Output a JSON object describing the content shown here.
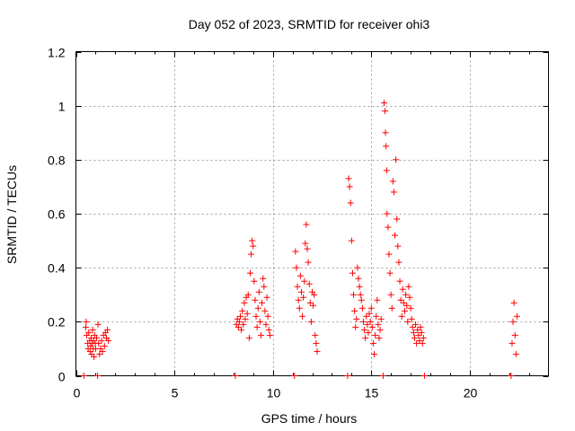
{
  "chart_data": {
    "type": "scatter",
    "title": "Day 052 of 2023, SRMTID for receiver ohi3",
    "xlabel": "GPS time / hours",
    "ylabel": "SRMTID / TECUs",
    "xlim": [
      0,
      24
    ],
    "ylim": [
      0,
      1.2
    ],
    "xticks": [
      0,
      5,
      10,
      15,
      20
    ],
    "xtick_labels": [
      "0",
      "5",
      "10",
      "15",
      "20"
    ],
    "yticks": [
      0,
      0.2,
      0.4,
      0.6,
      0.8,
      1.0,
      1.2
    ],
    "ytick_labels": [
      "0",
      "0.2",
      "0.4",
      "0.6",
      "0.8",
      "1",
      "1.2"
    ],
    "grid": true,
    "marker": "+",
    "color": "#ff0000",
    "series": [
      {
        "name": "SRMTID",
        "points": [
          [
            0.4,
            0.0
          ],
          [
            0.5,
            0.18
          ],
          [
            0.52,
            0.2
          ],
          [
            0.55,
            0.15
          ],
          [
            0.6,
            0.12
          ],
          [
            0.62,
            0.1
          ],
          [
            0.65,
            0.16
          ],
          [
            0.7,
            0.13
          ],
          [
            0.72,
            0.09
          ],
          [
            0.75,
            0.11
          ],
          [
            0.78,
            0.14
          ],
          [
            0.8,
            0.08
          ],
          [
            0.82,
            0.12
          ],
          [
            0.85,
            0.17
          ],
          [
            0.88,
            0.1
          ],
          [
            0.9,
            0.13
          ],
          [
            0.92,
            0.07
          ],
          [
            0.95,
            0.15
          ],
          [
            0.98,
            0.12
          ],
          [
            1.0,
            0.1
          ],
          [
            1.05,
            0.14
          ],
          [
            1.1,
            0.0
          ],
          [
            1.12,
            0.19
          ],
          [
            1.15,
            0.12
          ],
          [
            1.2,
            0.08
          ],
          [
            1.25,
            0.1
          ],
          [
            1.3,
            0.13
          ],
          [
            1.35,
            0.09
          ],
          [
            1.4,
            0.15
          ],
          [
            1.45,
            0.11
          ],
          [
            1.5,
            0.16
          ],
          [
            1.55,
            0.14
          ],
          [
            1.6,
            0.17
          ],
          [
            1.65,
            0.13
          ],
          [
            8.1,
            0.0
          ],
          [
            8.15,
            0.19
          ],
          [
            8.2,
            0.21
          ],
          [
            8.25,
            0.18
          ],
          [
            8.3,
            0.2
          ],
          [
            8.35,
            0.22
          ],
          [
            8.4,
            0.17
          ],
          [
            8.45,
            0.24
          ],
          [
            8.5,
            0.19
          ],
          [
            8.55,
            0.27
          ],
          [
            8.6,
            0.21
          ],
          [
            8.65,
            0.29
          ],
          [
            8.7,
            0.23
          ],
          [
            8.75,
            0.3
          ],
          [
            8.8,
            0.14
          ],
          [
            8.85,
            0.38
          ],
          [
            8.9,
            0.45
          ],
          [
            8.95,
            0.5
          ],
          [
            9.0,
            0.48
          ],
          [
            9.05,
            0.35
          ],
          [
            9.1,
            0.28
          ],
          [
            9.15,
            0.22
          ],
          [
            9.2,
            0.18
          ],
          [
            9.25,
            0.25
          ],
          [
            9.3,
            0.31
          ],
          [
            9.35,
            0.2
          ],
          [
            9.4,
            0.15
          ],
          [
            9.45,
            0.27
          ],
          [
            9.5,
            0.36
          ],
          [
            9.55,
            0.33
          ],
          [
            9.6,
            0.24
          ],
          [
            9.65,
            0.19
          ],
          [
            9.7,
            0.29
          ],
          [
            9.75,
            0.22
          ],
          [
            9.8,
            0.17
          ],
          [
            9.85,
            0.15
          ],
          [
            11.1,
            0.0
          ],
          [
            11.15,
            0.46
          ],
          [
            11.2,
            0.4
          ],
          [
            11.25,
            0.33
          ],
          [
            11.3,
            0.28
          ],
          [
            11.35,
            0.25
          ],
          [
            11.4,
            0.37
          ],
          [
            11.45,
            0.31
          ],
          [
            11.5,
            0.22
          ],
          [
            11.55,
            0.29
          ],
          [
            11.6,
            0.35
          ],
          [
            11.65,
            0.49
          ],
          [
            11.7,
            0.56
          ],
          [
            11.75,
            0.47
          ],
          [
            11.8,
            0.42
          ],
          [
            11.85,
            0.34
          ],
          [
            11.9,
            0.27
          ],
          [
            11.95,
            0.2
          ],
          [
            12.0,
            0.31
          ],
          [
            12.05,
            0.26
          ],
          [
            12.1,
            0.3
          ],
          [
            12.15,
            0.15
          ],
          [
            12.2,
            0.12
          ],
          [
            12.25,
            0.09
          ],
          [
            13.8,
            0.0
          ],
          [
            13.85,
            0.73
          ],
          [
            13.9,
            0.7
          ],
          [
            13.95,
            0.64
          ],
          [
            14.0,
            0.5
          ],
          [
            14.05,
            0.38
          ],
          [
            14.1,
            0.3
          ],
          [
            14.15,
            0.24
          ],
          [
            14.2,
            0.18
          ],
          [
            14.25,
            0.21
          ],
          [
            14.3,
            0.4
          ],
          [
            14.35,
            0.36
          ],
          [
            14.4,
            0.33
          ],
          [
            14.45,
            0.3
          ],
          [
            14.5,
            0.28
          ],
          [
            14.55,
            0.25
          ],
          [
            14.6,
            0.2
          ],
          [
            14.65,
            0.17
          ],
          [
            14.7,
            0.14
          ],
          [
            14.75,
            0.22
          ],
          [
            14.8,
            0.19
          ],
          [
            14.85,
            0.16
          ],
          [
            14.9,
            0.23
          ],
          [
            14.95,
            0.2
          ],
          [
            15.0,
            0.25
          ],
          [
            15.05,
            0.18
          ],
          [
            15.1,
            0.12
          ],
          [
            15.15,
            0.08
          ],
          [
            15.2,
            0.15
          ],
          [
            15.25,
            0.22
          ],
          [
            15.3,
            0.28
          ],
          [
            15.35,
            0.19
          ],
          [
            15.4,
            0.14
          ],
          [
            15.45,
            0.17
          ],
          [
            15.5,
            0.21
          ],
          [
            15.6,
            0.0
          ],
          [
            15.65,
            1.01
          ],
          [
            15.7,
            0.98
          ],
          [
            15.72,
            0.9
          ],
          [
            15.75,
            0.85
          ],
          [
            15.78,
            0.76
          ],
          [
            15.8,
            0.6
          ],
          [
            15.85,
            0.55
          ],
          [
            15.9,
            0.45
          ],
          [
            15.95,
            0.38
          ],
          [
            16.0,
            0.3
          ],
          [
            16.05,
            0.25
          ],
          [
            16.1,
            0.72
          ],
          [
            16.15,
            0.68
          ],
          [
            16.2,
            0.52
          ],
          [
            16.25,
            0.8
          ],
          [
            16.3,
            0.58
          ],
          [
            16.35,
            0.48
          ],
          [
            16.4,
            0.42
          ],
          [
            16.45,
            0.35
          ],
          [
            16.5,
            0.28
          ],
          [
            16.55,
            0.22
          ],
          [
            16.6,
            0.32
          ],
          [
            16.65,
            0.27
          ],
          [
            16.7,
            0.24
          ],
          [
            16.75,
            0.3
          ],
          [
            16.8,
            0.26
          ],
          [
            16.85,
            0.2
          ],
          [
            16.9,
            0.33
          ],
          [
            16.95,
            0.29
          ],
          [
            17.0,
            0.25
          ],
          [
            17.05,
            0.21
          ],
          [
            17.1,
            0.18
          ],
          [
            17.15,
            0.16
          ],
          [
            17.2,
            0.14
          ],
          [
            17.25,
            0.19
          ],
          [
            17.3,
            0.12
          ],
          [
            17.35,
            0.17
          ],
          [
            17.4,
            0.15
          ],
          [
            17.45,
            0.13
          ],
          [
            17.5,
            0.18
          ],
          [
            17.55,
            0.16
          ],
          [
            17.6,
            0.12
          ],
          [
            17.65,
            0.14
          ],
          [
            17.7,
            0.0
          ],
          [
            22.1,
            0.0
          ],
          [
            22.15,
            0.12
          ],
          [
            22.2,
            0.2
          ],
          [
            22.25,
            0.27
          ],
          [
            22.3,
            0.15
          ],
          [
            22.35,
            0.08
          ],
          [
            22.4,
            0.22
          ]
        ]
      }
    ]
  }
}
